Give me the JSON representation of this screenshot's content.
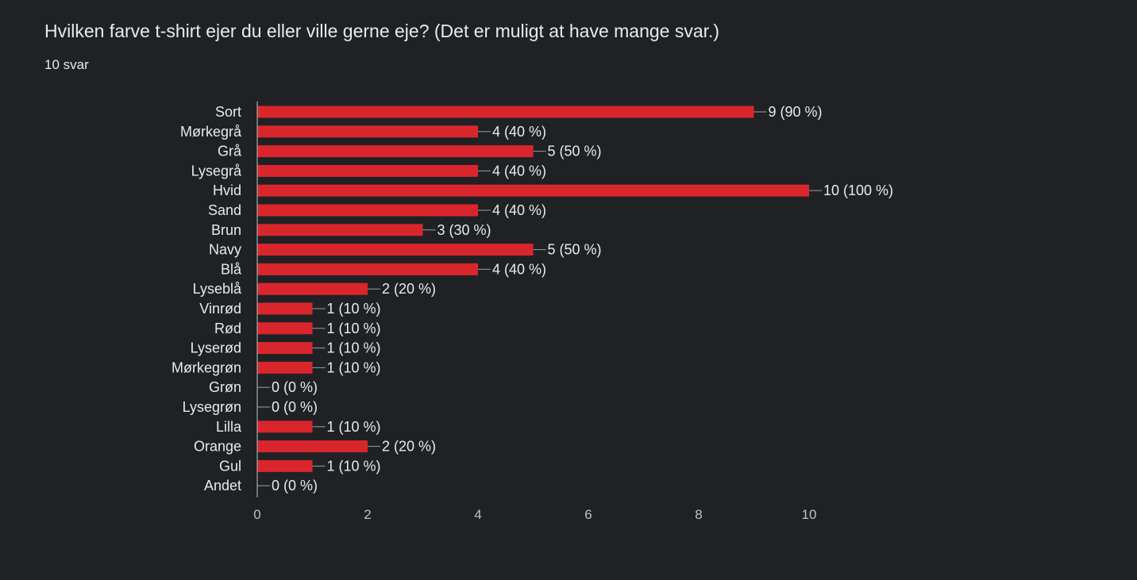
{
  "header": {
    "title": "Hvilken farve t-shirt ejer du eller ville gerne eje? (Det er muligt at have mange svar.)",
    "response_count": "10 svar"
  },
  "colors": {
    "background": "#202124",
    "bar": "#d9262c",
    "text": "#e8eaed",
    "axis": "#9aa0a6"
  },
  "chart_data": {
    "type": "bar",
    "orientation": "horizontal",
    "categories": [
      "Sort",
      "Mørkegrå",
      "Grå",
      "Lysegrå",
      "Hvid",
      "Sand",
      "Brun",
      "Navy",
      "Blå",
      "Lyseblå",
      "Vinrød",
      "Rød",
      "Lyserød",
      "Mørkegrøn",
      "Grøn",
      "Lysegrøn",
      "Lilla",
      "Orange",
      "Gul",
      "Andet"
    ],
    "values": [
      9,
      4,
      5,
      4,
      10,
      4,
      3,
      5,
      4,
      2,
      1,
      1,
      1,
      1,
      0,
      0,
      1,
      2,
      1,
      0
    ],
    "value_labels": [
      "9 (90 %)",
      "4 (40 %)",
      "5 (50 %)",
      "4 (40 %)",
      "10 (100 %)",
      "4 (40 %)",
      "3 (30 %)",
      "5 (50 %)",
      "4 (40 %)",
      "2 (20 %)",
      "1 (10 %)",
      "1 (10 %)",
      "1 (10 %)",
      "1 (10 %)",
      "0 (0 %)",
      "0 (0 %)",
      "1 (10 %)",
      "2 (20 %)",
      "1 (10 %)",
      "0 (0 %)"
    ],
    "xticks": [
      "0",
      "2",
      "4",
      "6",
      "8",
      "10"
    ],
    "xlim": [
      0,
      10
    ],
    "grid": false
  }
}
